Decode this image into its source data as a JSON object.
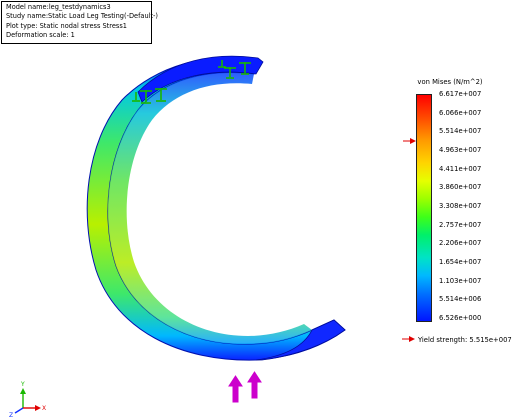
{
  "info": {
    "model_name": "Model name:leg_testdynamics3",
    "study_name": "Study name:Static Load Leg Testing(-Default-)",
    "plot_type": "Plot type: Static nodal stress Stress1",
    "deformation_scale": "Deformation scale: 1"
  },
  "legend": {
    "title": "von Mises (N/m^2)",
    "ticks": [
      "6.617e+007",
      "6.066e+007",
      "5.514e+007",
      "4.963e+007",
      "4.411e+007",
      "3.860e+007",
      "3.308e+007",
      "2.757e+007",
      "2.206e+007",
      "1.654e+007",
      "1.103e+007",
      "5.514e+006",
      "6.526e+000"
    ],
    "yield_strength": "Yield strength: 5.515e+007",
    "marker_color": "#e00000"
  },
  "triad": {
    "x_label": "X",
    "y_label": "Y",
    "z_label": "Z"
  },
  "colors": {
    "fixture": "#19b800",
    "load": "#cc00cc",
    "part_low": "#0014ff",
    "part_mid": "#00e3c6",
    "part_high": "#9cff00"
  }
}
